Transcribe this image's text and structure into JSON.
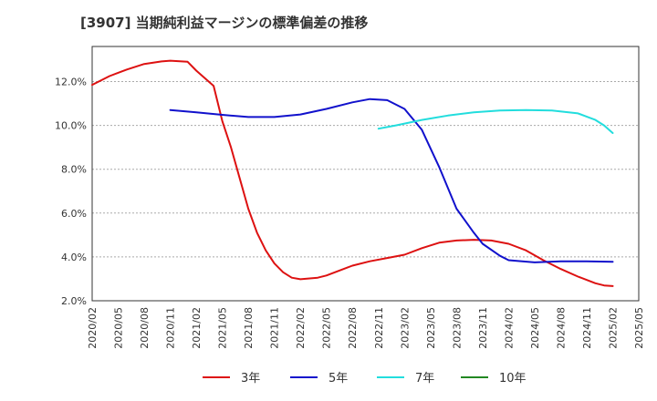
{
  "chart_data": {
    "type": "line",
    "title": "[3907]  当期純利益マージンの標準偏差の推移",
    "xlabel": "",
    "ylabel": "",
    "ylim": [
      2.0,
      13.6
    ],
    "y_ticks": [
      "2.0%",
      "4.0%",
      "6.0%",
      "8.0%",
      "10.0%",
      "12.0%"
    ],
    "y_tick_values": [
      2,
      4,
      6,
      8,
      10,
      12
    ],
    "x_ticks": [
      "2020/02",
      "2020/05",
      "2020/08",
      "2020/11",
      "2021/02",
      "2021/05",
      "2021/08",
      "2021/11",
      "2022/02",
      "2022/05",
      "2022/08",
      "2022/11",
      "2023/02",
      "2023/05",
      "2023/08",
      "2023/11",
      "2024/02",
      "2024/05",
      "2024/08",
      "2024/11",
      "2025/02",
      "2025/05"
    ],
    "grid": "horizontal-dashed",
    "legend_position": "bottom",
    "series": [
      {
        "name": "3年",
        "color": "#dd1111",
        "points": [
          [
            "2020/02",
            11.85
          ],
          [
            "2020/04",
            12.25
          ],
          [
            "2020/06",
            12.55
          ],
          [
            "2020/08",
            12.8
          ],
          [
            "2020/10",
            12.92
          ],
          [
            "2020/11",
            12.95
          ],
          [
            "2021/01",
            12.9
          ],
          [
            "2021/02",
            12.5
          ],
          [
            "2021/04",
            11.8
          ],
          [
            "2021/05",
            10.2
          ],
          [
            "2021/06",
            9.0
          ],
          [
            "2021/07",
            7.6
          ],
          [
            "2021/08",
            6.2
          ],
          [
            "2021/09",
            5.1
          ],
          [
            "2021/10",
            4.3
          ],
          [
            "2021/11",
            3.7
          ],
          [
            "2021/12",
            3.3
          ],
          [
            "2022/01",
            3.05
          ],
          [
            "2022/02",
            2.98
          ],
          [
            "2022/04",
            3.05
          ],
          [
            "2022/05",
            3.15
          ],
          [
            "2022/06",
            3.3
          ],
          [
            "2022/08",
            3.6
          ],
          [
            "2022/10",
            3.8
          ],
          [
            "2022/12",
            3.95
          ],
          [
            "2023/02",
            4.1
          ],
          [
            "2023/04",
            4.4
          ],
          [
            "2023/06",
            4.65
          ],
          [
            "2023/08",
            4.75
          ],
          [
            "2023/10",
            4.78
          ],
          [
            "2023/12",
            4.75
          ],
          [
            "2024/02",
            4.6
          ],
          [
            "2024/04",
            4.3
          ],
          [
            "2024/06",
            3.85
          ],
          [
            "2024/08",
            3.45
          ],
          [
            "2024/10",
            3.1
          ],
          [
            "2024/12",
            2.8
          ],
          [
            "2025/01",
            2.7
          ],
          [
            "2025/02",
            2.67
          ]
        ]
      },
      {
        "name": "5年",
        "color": "#1111cc",
        "points": [
          [
            "2020/11",
            10.7
          ],
          [
            "2021/02",
            10.6
          ],
          [
            "2021/05",
            10.48
          ],
          [
            "2021/08",
            10.38
          ],
          [
            "2021/11",
            10.38
          ],
          [
            "2022/02",
            10.5
          ],
          [
            "2022/05",
            10.75
          ],
          [
            "2022/08",
            11.05
          ],
          [
            "2022/10",
            11.2
          ],
          [
            "2022/12",
            11.15
          ],
          [
            "2023/02",
            10.75
          ],
          [
            "2023/04",
            9.8
          ],
          [
            "2023/06",
            8.1
          ],
          [
            "2023/08",
            6.2
          ],
          [
            "2023/10",
            5.1
          ],
          [
            "2023/11",
            4.6
          ],
          [
            "2024/01",
            4.05
          ],
          [
            "2024/02",
            3.85
          ],
          [
            "2024/05",
            3.75
          ],
          [
            "2024/08",
            3.8
          ],
          [
            "2024/11",
            3.8
          ],
          [
            "2025/02",
            3.78
          ]
        ]
      },
      {
        "name": "7年",
        "color": "#22dddd",
        "points": [
          [
            "2022/11",
            9.85
          ],
          [
            "2023/01",
            10.0
          ],
          [
            "2023/04",
            10.25
          ],
          [
            "2023/07",
            10.45
          ],
          [
            "2023/10",
            10.6
          ],
          [
            "2024/01",
            10.68
          ],
          [
            "2024/04",
            10.7
          ],
          [
            "2024/07",
            10.68
          ],
          [
            "2024/10",
            10.55
          ],
          [
            "2024/12",
            10.25
          ],
          [
            "2025/01",
            10.0
          ],
          [
            "2025/02",
            9.65
          ]
        ]
      },
      {
        "name": "10年",
        "color": "#228822",
        "points": []
      }
    ]
  }
}
